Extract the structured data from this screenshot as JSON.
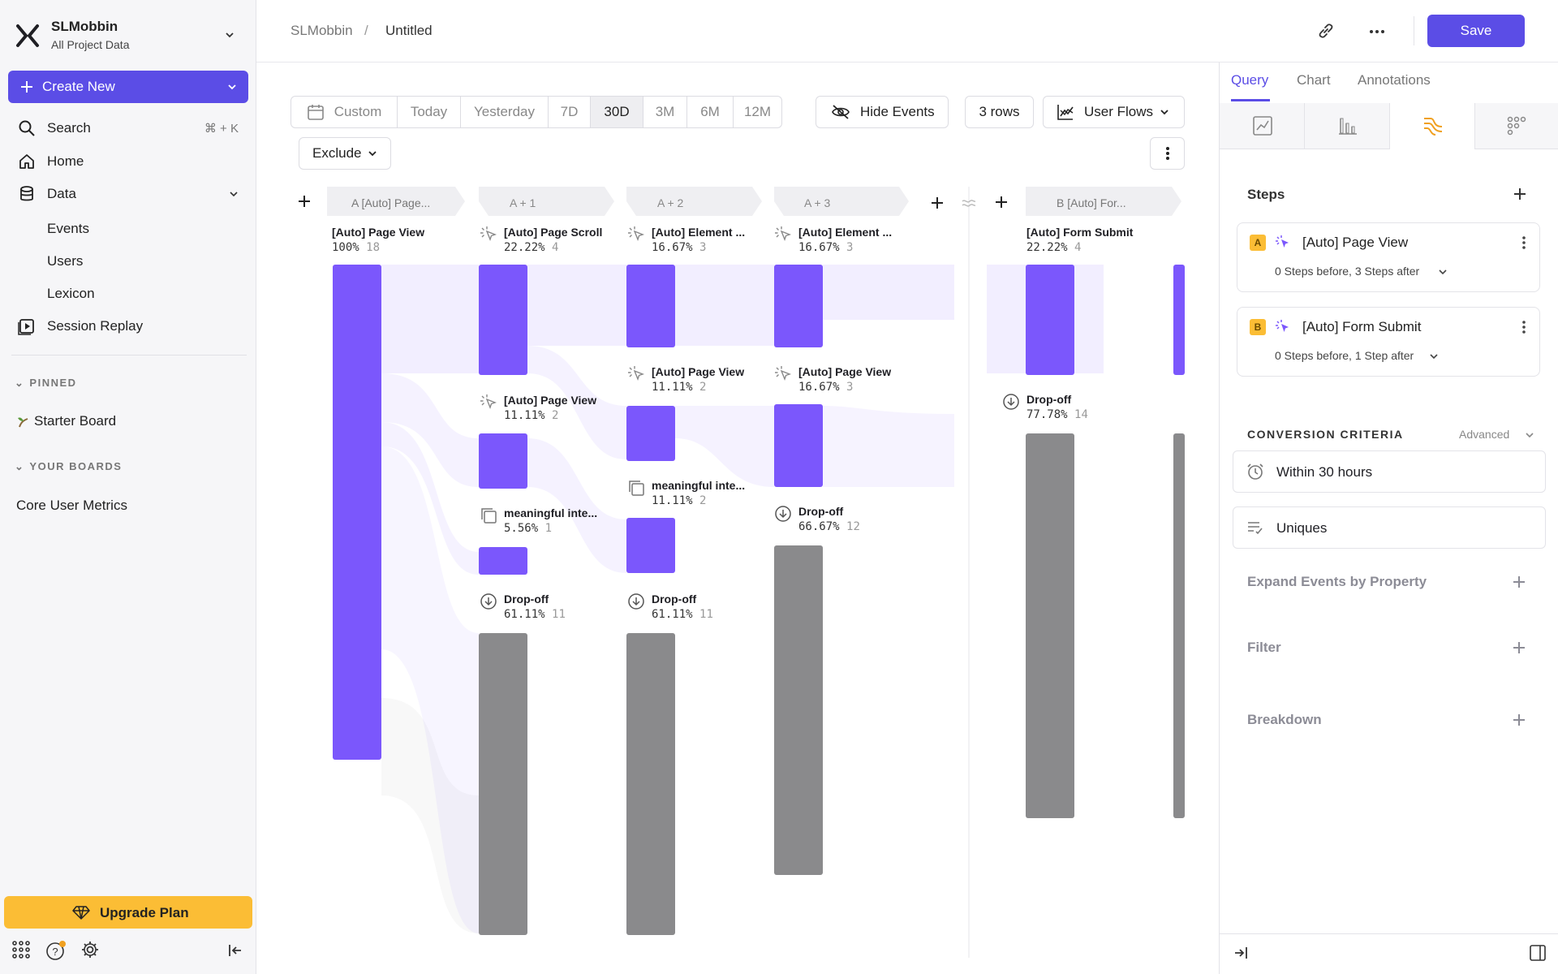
{
  "workspace": {
    "name": "SLMobbin",
    "subtitle": "All Project Data"
  },
  "sidebar": {
    "create_label": "Create New",
    "search_label": "Search",
    "search_shortcut": "⌘ + K",
    "home_label": "Home",
    "data_label": "Data",
    "data_items": [
      "Events",
      "Users",
      "Lexicon"
    ],
    "session_replay_label": "Session Replay",
    "pinned_title": "PINNED",
    "pinned_items": [
      "Starter Board"
    ],
    "boards_title": "YOUR BOARDS",
    "board_items": [
      "Core User Metrics"
    ],
    "upgrade_label": "Upgrade Plan"
  },
  "header": {
    "breadcrumb_project": "SLMobbin",
    "breadcrumb_separator": "/",
    "breadcrumb_page": "Untitled",
    "save_label": "Save"
  },
  "toolbar": {
    "date_ranges": [
      "Custom",
      "Today",
      "Yesterday",
      "7D",
      "30D",
      "3M",
      "6M",
      "12M"
    ],
    "active_range": "30D",
    "hide_events_label": "Hide Events",
    "rows_label": "3 rows",
    "chart_type_label": "User Flows",
    "exclude_label": "Exclude"
  },
  "flow": {
    "columns": [
      "A  [Auto] Page...",
      "A + 1",
      "A + 2",
      "A + 3",
      "B  [Auto] For..."
    ],
    "nodes": [
      {
        "label": "[Auto] Page View",
        "pct": "100%",
        "count": "18"
      },
      {
        "label": "[Auto] Page Scroll",
        "pct": "22.22%",
        "count": "4"
      },
      {
        "label": "[Auto] Page View",
        "pct": "11.11%",
        "count": "2"
      },
      {
        "label": "meaningful inte...",
        "pct": "5.56%",
        "count": "1"
      },
      {
        "label": "Drop-off",
        "pct": "61.11%",
        "count": "11"
      },
      {
        "label": "[Auto] Element ...",
        "pct": "16.67%",
        "count": "3"
      },
      {
        "label": "[Auto] Page View",
        "pct": "11.11%",
        "count": "2"
      },
      {
        "label": "meaningful inte...",
        "pct": "11.11%",
        "count": "2"
      },
      {
        "label": "Drop-off",
        "pct": "61.11%",
        "count": "11"
      },
      {
        "label": "[Auto] Element ...",
        "pct": "16.67%",
        "count": "3"
      },
      {
        "label": "[Auto] Page View",
        "pct": "16.67%",
        "count": "3"
      },
      {
        "label": "Drop-off",
        "pct": "66.67%",
        "count": "12"
      },
      {
        "label": "[Auto] Form Submit",
        "pct": "22.22%",
        "count": "4"
      },
      {
        "label": "Drop-off",
        "pct": "77.78%",
        "count": "14"
      }
    ]
  },
  "panel": {
    "tabs": [
      "Query",
      "Chart",
      "Annotations"
    ],
    "active_tab": "Query",
    "steps_title": "Steps",
    "steps": [
      {
        "badge": "A",
        "name": "[Auto] Page View",
        "detail": "0 Steps before, 3 Steps after"
      },
      {
        "badge": "B",
        "name": "[Auto] Form Submit",
        "detail": "0 Steps before, 1 Step after"
      }
    ],
    "conversion_title": "CONVERSION CRITERIA",
    "advanced_label": "Advanced",
    "within_label": "Within 30 hours",
    "uniques_label": "Uniques",
    "expand_label": "Expand Events by Property",
    "filter_label": "Filter",
    "breakdown_label": "Breakdown"
  },
  "colors": {
    "accent": "#5b4de6",
    "bar": "#7b57fc",
    "dropoff": "#8a8a8c",
    "upgrade": "#fbbd35"
  }
}
